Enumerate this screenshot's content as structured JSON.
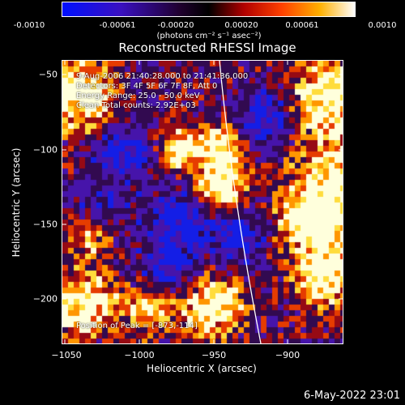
{
  "colorbar": {
    "ticks": [
      "-0.0010",
      "-0.00061",
      "-0.00020",
      "0.00020",
      "0.00061",
      "0.0010"
    ],
    "units": "(photons cm⁻² s⁻¹ asec⁻²)"
  },
  "plot": {
    "title": "Reconstructed RHESSI Image",
    "xlabel": "Heliocentric X (arcsec)",
    "ylabel": "Heliocentric Y (arcsec)",
    "xticks": [
      "−1050",
      "−1000",
      "−950",
      "−900"
    ],
    "yticks": [
      "−50",
      "−100",
      "−150",
      "−200"
    ]
  },
  "info": {
    "time_range": "9-Aug-2006 21:40:28.000 to 21:41:36.000",
    "detectors": "Detectors: 3F 4F 5F 6F 7F 8F, Att 0",
    "energy": "Energy Range: 25.0 - 50.0 keV",
    "method": "Clean     Total counts: 2.92E+03",
    "peak": "Position of Peak = [-873,-114]"
  },
  "timestamp": "6-May-2022 23:01",
  "colors": {
    "negative": "#0010ff",
    "zero": "#000000",
    "positive_high": "#ffffff",
    "limb_line": "#ffffff"
  }
}
